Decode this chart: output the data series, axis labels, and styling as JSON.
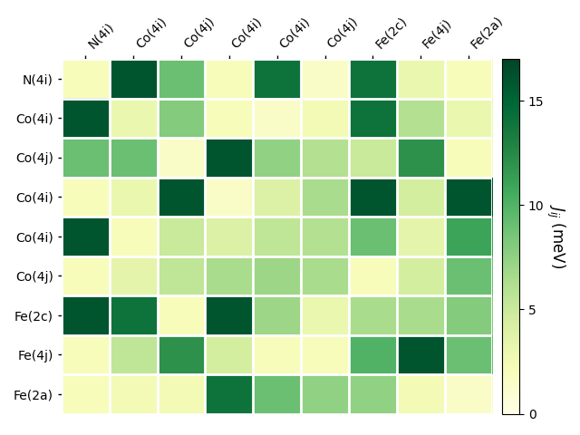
{
  "labels": [
    "N(4i)",
    "Co(4i)",
    "Co(4j)",
    "Co(4i)",
    "Co(4i)",
    "Co(4j)",
    "Fe(2c)",
    "Fe(4j)",
    "Fe(2a)"
  ],
  "col_labels": [
    "N(4i)",
    "Co(4i)",
    "Co(4j)",
    "Co(4i)",
    "Co(4i)",
    "Co(4j)",
    "Fe(2c)",
    "Fe(4j)",
    "Fe(2a)"
  ],
  "matrix": [
    [
      2.0,
      16.0,
      9.0,
      2.0,
      14.0,
      1.5,
      14.0,
      3.0,
      2.0
    ],
    [
      16.0,
      3.0,
      8.0,
      2.0,
      1.5,
      2.5,
      14.0,
      6.0,
      3.0
    ],
    [
      9.0,
      9.0,
      1.5,
      16.0,
      7.5,
      6.0,
      5.0,
      12.0,
      2.0
    ],
    [
      2.0,
      3.0,
      16.0,
      1.5,
      4.0,
      6.5,
      16.0,
      4.5,
      16.0
    ],
    [
      16.0,
      2.0,
      5.0,
      4.0,
      5.5,
      6.0,
      9.0,
      3.5,
      11.0
    ],
    [
      2.0,
      3.5,
      5.5,
      6.5,
      7.0,
      6.5,
      2.0,
      4.5,
      9.0
    ],
    [
      16.0,
      14.0,
      2.0,
      16.0,
      7.0,
      3.0,
      6.5,
      6.5,
      8.0
    ],
    [
      2.0,
      5.5,
      12.0,
      4.5,
      2.0,
      2.0,
      10.0,
      16.0,
      9.0
    ],
    [
      2.0,
      2.5,
      2.5,
      14.0,
      9.0,
      7.5,
      7.5,
      2.5,
      1.5
    ]
  ],
  "vmin": 0,
  "vmax": 17,
  "cmap": "YlGn",
  "colorbar_label": "$J_{ij}$ (meV)",
  "colorbar_ticks": [
    0,
    5,
    10,
    15
  ],
  "figsize": [
    6.4,
    4.8
  ],
  "dpi": 100
}
